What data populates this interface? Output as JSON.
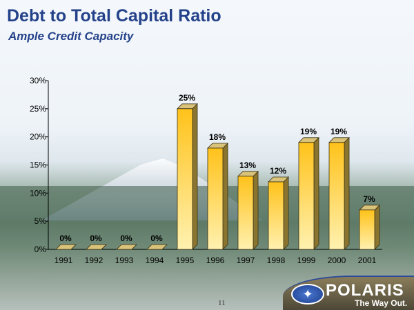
{
  "slide": {
    "title": "Debt to Total Capital Ratio",
    "subtitle": "Ample Credit Capacity",
    "page_number": "11"
  },
  "logo": {
    "brand": "POLARIS",
    "tagline": "The Way Out.",
    "mark": "star-icon"
  },
  "colors": {
    "title": "#24428a",
    "bar_top": "#ffc21a",
    "bar_bottom": "#fff1b0",
    "bar_side": "#8a7530"
  },
  "chart_data": {
    "type": "bar",
    "three_d": true,
    "title": "",
    "xlabel": "",
    "ylabel": "",
    "categories": [
      "1991",
      "1992",
      "1993",
      "1994",
      "1995",
      "1996",
      "1997",
      "1998",
      "1999",
      "2000",
      "2001"
    ],
    "values": [
      0,
      0,
      0,
      0,
      25,
      18,
      13,
      12,
      19,
      19,
      7
    ],
    "data_labels": [
      "0%",
      "0%",
      "0%",
      "0%",
      "25%",
      "18%",
      "13%",
      "12%",
      "19%",
      "19%",
      "7%"
    ],
    "ylim": [
      0,
      30
    ],
    "yticks": [
      "0%",
      "5%",
      "10%",
      "15%",
      "20%",
      "25%",
      "30%"
    ],
    "grid": false,
    "legend": "none"
  }
}
